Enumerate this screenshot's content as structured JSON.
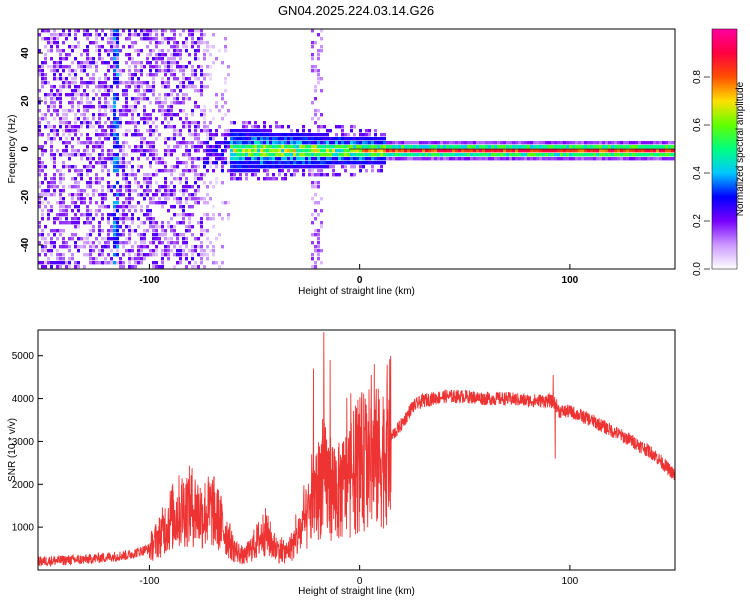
{
  "title": "GN04.2025.224.03.14.G26",
  "chart_data": [
    {
      "type": "heatmap",
      "xlabel": "Height of straight line (km)",
      "ylabel": "Frequency (Hz)",
      "xlim": [
        -153,
        150
      ],
      "ylim": [
        -50,
        50
      ],
      "xticks": [
        -100,
        0,
        100
      ],
      "yticks": [
        -40,
        -20,
        0,
        20,
        40
      ],
      "colorbar": {
        "label": "Normalized spectral amplitude",
        "range": [
          0,
          1
        ],
        "ticks": [
          0.0,
          0.2,
          0.4,
          0.6,
          0.8
        ],
        "colors": [
          "#ffffff",
          "#cc99ff",
          "#7700ff",
          "#0000ff",
          "#00c8ff",
          "#00ff80",
          "#60ff00",
          "#ffe000",
          "#ff5000",
          "#ff0040",
          "#ff00a0"
        ]
      },
      "description_points": [
        {
          "x_range": [
            -153,
            -70
          ],
          "freq_spread": 50,
          "amplitude": 0.15
        },
        {
          "x_range": [
            -70,
            10
          ],
          "freq_spread": 8,
          "amplitude": 0.45
        },
        {
          "x_range": [
            10,
            150
          ],
          "freq_spread": 2,
          "amplitude": 0.9
        }
      ]
    },
    {
      "type": "line",
      "xlabel": "Height of straight line (km)",
      "ylabel": "SNR (10 * v/v)",
      "xlim": [
        -153,
        150
      ],
      "ylim": [
        0,
        5600
      ],
      "xticks": [
        -100,
        0,
        100
      ],
      "yticks": [
        1000,
        2000,
        3000,
        4000,
        5000
      ],
      "color": "#ee3333",
      "envelope": {
        "x": [
          -153,
          -130,
          -110,
          -100,
          -95,
          -90,
          -85,
          -80,
          -75,
          -70,
          -65,
          -60,
          -55,
          -50,
          -45,
          -40,
          -35,
          -30,
          -25,
          -20,
          -18,
          -15,
          -10,
          -5,
          0,
          5,
          10,
          15,
          20,
          25,
          30,
          40,
          50,
          60,
          70,
          80,
          90,
          93,
          95,
          100,
          110,
          120,
          130,
          140,
          150
        ],
        "y": [
          200,
          250,
          350,
          500,
          800,
          1200,
          1400,
          1500,
          1300,
          1400,
          1000,
          500,
          300,
          600,
          900,
          500,
          400,
          700,
          1200,
          1800,
          2200,
          2000,
          1800,
          2100,
          2500,
          2600,
          2600,
          3100,
          3400,
          3800,
          3950,
          4050,
          4050,
          4000,
          4000,
          3950,
          3950,
          3900,
          3700,
          3700,
          3500,
          3250,
          3000,
          2700,
          2200
        ]
      },
      "spikes": [
        {
          "x": -22,
          "y": 4700
        },
        {
          "x": -17,
          "y": 5550
        },
        {
          "x": -14,
          "y": 4900
        },
        {
          "x": 7,
          "y": 4800
        },
        {
          "x": 92,
          "y": 4550
        },
        {
          "x": 93,
          "y": 2600
        }
      ]
    }
  ]
}
